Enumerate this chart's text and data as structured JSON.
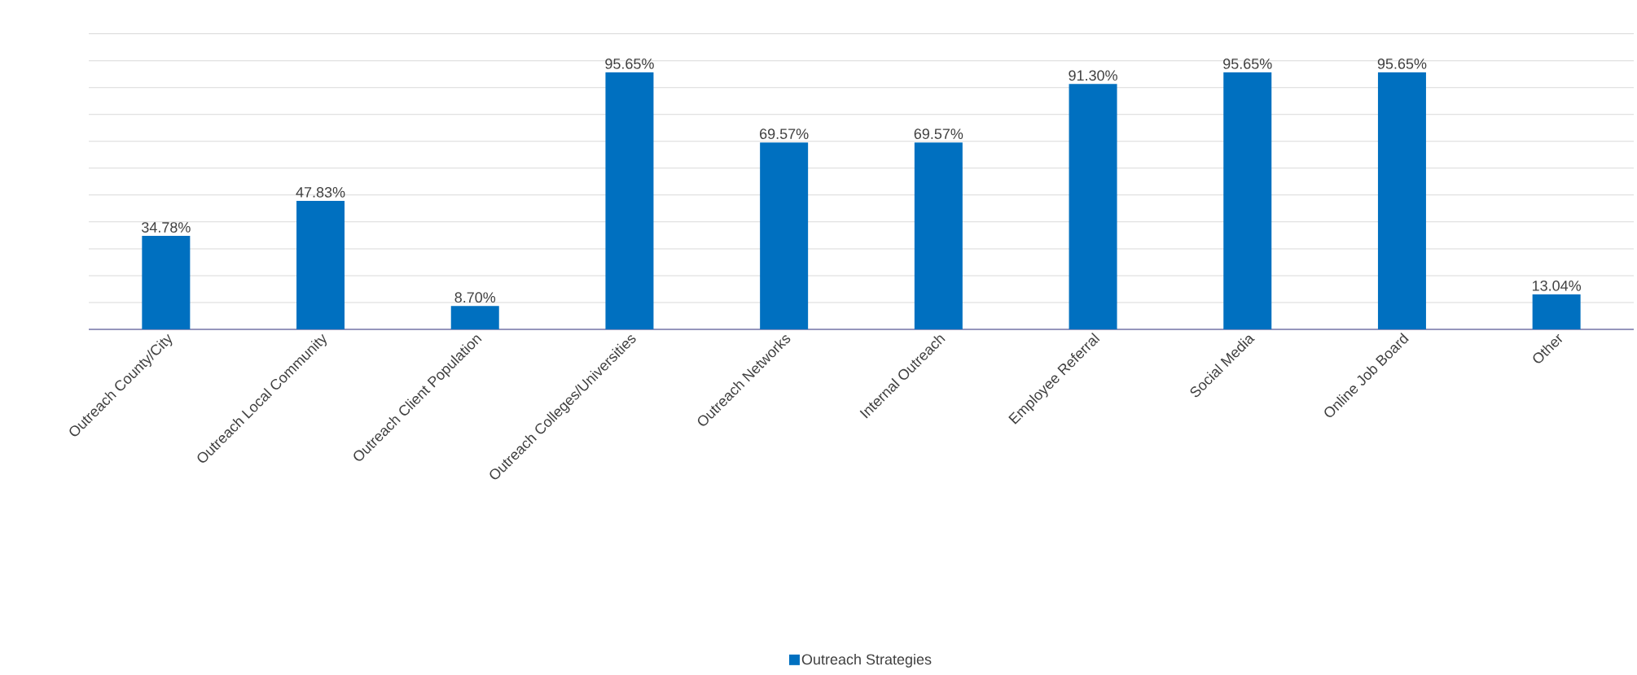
{
  "chart_data": {
    "type": "bar",
    "categories": [
      "Outreach County/City",
      "Outreach Local Community",
      "Outreach Client Population",
      "Outreach Colleges/Universities",
      "Outreach Networks",
      "Internal Outreach",
      "Employee Referral",
      "Social Media",
      "Online Job Board",
      "Other"
    ],
    "series": [
      {
        "name": "Outreach Strategies",
        "color": "#0070c0",
        "values": [
          34.78,
          47.83,
          8.7,
          95.65,
          69.57,
          69.57,
          91.3,
          95.65,
          95.65,
          13.04
        ],
        "value_labels": [
          "34.78%",
          "47.83%",
          "8.70%",
          "95.65%",
          "69.57%",
          "69.57%",
          "91.30%",
          "95.65%",
          "95.65%",
          "13.04%"
        ]
      }
    ],
    "grid": "y",
    "legend": "bottom",
    "tick_labels": "x"
  }
}
